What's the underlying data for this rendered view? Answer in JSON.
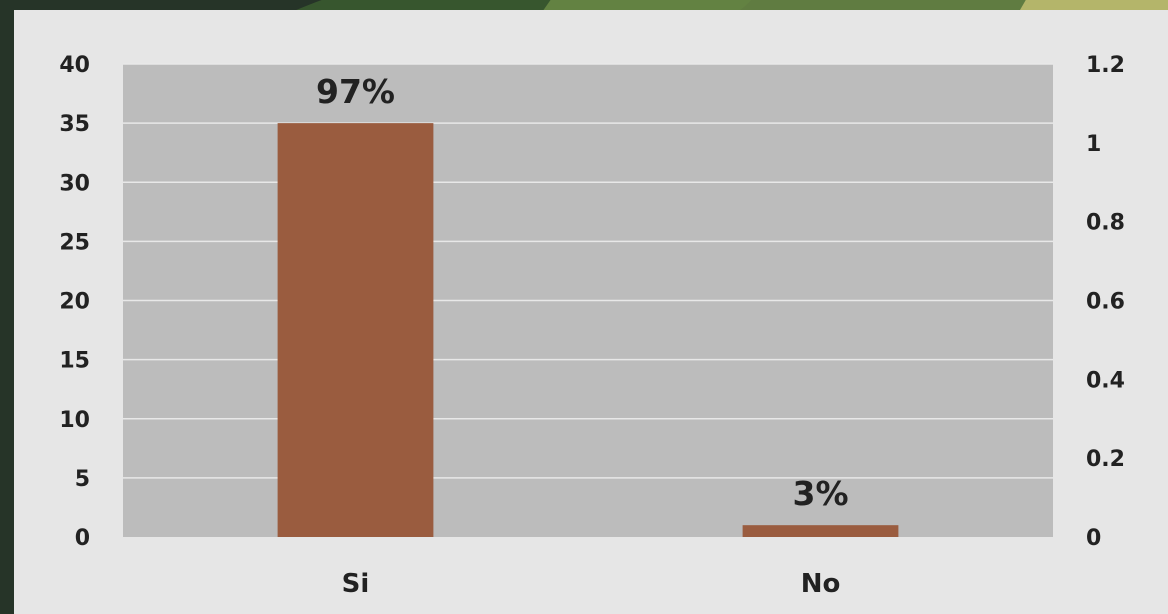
{
  "chart_data": {
    "type": "bar",
    "categories": [
      "Si",
      "No"
    ],
    "values": [
      35,
      1
    ],
    "data_labels": [
      "97%",
      "3%"
    ],
    "title": "",
    "xlabel": "",
    "ylabel": "",
    "ylim": [
      0,
      40
    ],
    "y_ticks": [
      "0",
      "5",
      "10",
      "15",
      "20",
      "25",
      "30",
      "35",
      "40"
    ],
    "y2lim": [
      0,
      1.2
    ],
    "y2_ticks": [
      "0",
      "0.2",
      "0.4",
      "0.6",
      "0.8",
      "1",
      "1.2"
    ],
    "grid": true,
    "legend": "none",
    "colors": {
      "bar": "#9a5c3f",
      "plot_background": "#bcbcbc",
      "gridline": "#e8e8e8",
      "panel": "#e6e6e6"
    }
  }
}
